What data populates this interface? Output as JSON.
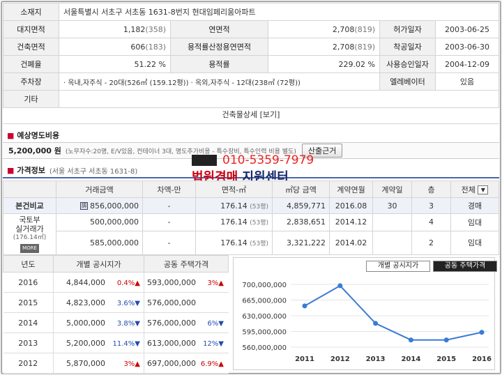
{
  "building_info": {
    "address_label": "소재지",
    "address": "서울특별시 서초구 서초동 1631-8번지  현대임페리움아파트",
    "rows": [
      {
        "l1": "대지면적",
        "v1": "1,182",
        "p1": "(358)",
        "l2": "연면적",
        "v2": "2,708",
        "p2": "(819)",
        "l3": "허가일자",
        "v3": "2003-06-25"
      },
      {
        "l1": "건축면적",
        "v1": "606",
        "p1": "(183)",
        "l2": "용적률산정용연면적",
        "v2": "2,708",
        "p2": "(819)",
        "l3": "착공일자",
        "v3": "2003-06-30"
      },
      {
        "l1": "건폐율",
        "v1": "51.22 %",
        "p1": "",
        "l2": "용적률",
        "v2": "229.02 %",
        "p2": "",
        "l3": "사용승인일자",
        "v3": "2004-12-09"
      }
    ],
    "parking_label": "주차장",
    "parking": "· 옥내,자주식 - 20대(526㎡ (159.12평)) · 옥외,자주식 - 12대(238㎡ (72평))",
    "elevator_label": "엘레베이터",
    "elevator": "있음",
    "etc_label": "기타",
    "detail_text": "건축물상세 [보기]"
  },
  "fee": {
    "title": "예상명도비용",
    "amount": "5,200,000 원",
    "note": "(노무자수:20명, E/V있음, 컨테이너 3대, 명도추가비용 - 특수장비, 특수인력 비용 별도)",
    "button": "산출근거"
  },
  "price_info": {
    "title": "가격정보",
    "address": "(서울 서초구 서초동 1631-8)",
    "headers": [
      "거래금액",
      "차액-만",
      "면적-㎡",
      "㎡당 금액",
      "계약연월",
      "계약일",
      "층"
    ],
    "select_value": "전체",
    "rows": [
      {
        "label": "본건비교",
        "icon": "doc-icon",
        "amount": "856,000,000",
        "diff": "-",
        "area": "176.14",
        "pyeong": "(53평)",
        "per_m2": "4,859,771",
        "ym": "2016.08",
        "day": "30",
        "floor": "3",
        "type": "경매"
      },
      {
        "label": "",
        "amount": "500,000,000",
        "diff": "-",
        "area": "176.14",
        "pyeong": "(53평)",
        "per_m2": "2,838,651",
        "ym": "2014.12",
        "day": "",
        "floor": "4",
        "type": "임대"
      },
      {
        "label": "",
        "amount": "585,000,000",
        "diff": "-",
        "area": "176.14",
        "pyeong": "(53평)",
        "per_m2": "3,321,222",
        "ym": "2014.02",
        "day": "",
        "floor": "2",
        "type": "임대"
      }
    ],
    "nearby_label_1": "국토부",
    "nearby_label_2": "실거래가",
    "nearby_area": "(176.14㎡)",
    "more": "MORE"
  },
  "watermark": {
    "phone": "010-5359-7979",
    "name_red": "법원경매",
    "name_rest": " 지원센터"
  },
  "public_price": {
    "headers": [
      "년도",
      "개별 공시지가",
      "공동 주택가격"
    ],
    "rows": [
      {
        "year": "2016",
        "land": "4,844,000",
        "land_chg": "0.4%▲",
        "house": "593,000,000",
        "house_chg": "3%▲"
      },
      {
        "year": "2015",
        "land": "4,823,000",
        "land_chg": "3.6%▼",
        "house": "576,000,000",
        "house_chg": ""
      },
      {
        "year": "2014",
        "land": "5,000,000",
        "land_chg": "3.8%▼",
        "house": "576,000,000",
        "house_chg": "6%▼"
      },
      {
        "year": "2013",
        "land": "5,200,000",
        "land_chg": "11.4%▼",
        "house": "613,000,000",
        "house_chg": "12%▼"
      },
      {
        "year": "2012",
        "land": "5,870,000",
        "land_chg": "3%▲",
        "house": "697,000,000",
        "house_chg": "6.9%▲"
      }
    ]
  },
  "chart_tabs": [
    "개별 공시지가",
    "공동 주택가격"
  ],
  "chart_data": {
    "type": "line",
    "x": [
      2011,
      2012,
      2013,
      2014,
      2015,
      2016
    ],
    "values": [
      652000000,
      697000000,
      613000000,
      576000000,
      576000000,
      593000000
    ],
    "y_ticks": [
      "700,000,000",
      "665,000,000",
      "630,000,000",
      "595,000,000",
      "560,000,000"
    ],
    "ylim": [
      560000000,
      700000000
    ],
    "color": "#3a7bd5"
  }
}
